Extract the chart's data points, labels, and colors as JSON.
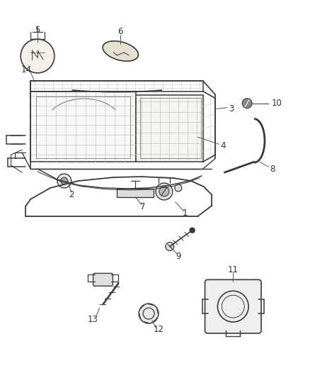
{
  "bg_color": "#ffffff",
  "lc": "#3a3a3a",
  "tc": "#333333",
  "fig_w": 4.38,
  "fig_h": 5.33,
  "dpi": 100
}
